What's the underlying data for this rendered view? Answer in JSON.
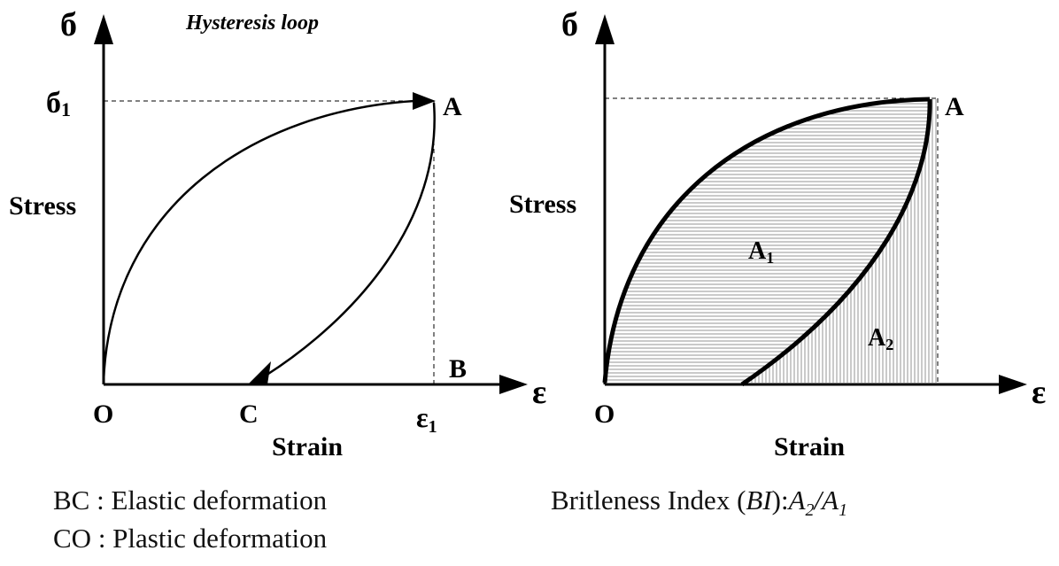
{
  "left_panel": {
    "title": "Hysteresis loop",
    "y_symbol": "б",
    "x_symbol": "ε",
    "sigma1_base": "б",
    "sigma1_sub": "1",
    "eps1_base": "ε",
    "eps1_sub": "1",
    "y_label": "Stress",
    "x_label": "Strain",
    "point_a": "A",
    "point_b": "B",
    "point_c": "C",
    "point_o": "O"
  },
  "right_panel": {
    "y_symbol": "б",
    "x_symbol": "ε",
    "y_label": "Stress",
    "x_label": "Strain",
    "point_a": "A",
    "point_o": "O",
    "area1_base": "A",
    "area1_sub": "1",
    "area2_base": "A",
    "area2_sub": "2"
  },
  "captions": {
    "bc": "BC : Elastic deformation",
    "co": "CO : Plastic deformation",
    "bi_prefix": "Britleness Index (",
    "bi_italic": "BI",
    "bi_colon": "):",
    "bi_a2": "A",
    "bi_a2_sub": "2",
    "bi_slash": "/",
    "bi_a1": "A",
    "bi_a1_sub": "1"
  }
}
